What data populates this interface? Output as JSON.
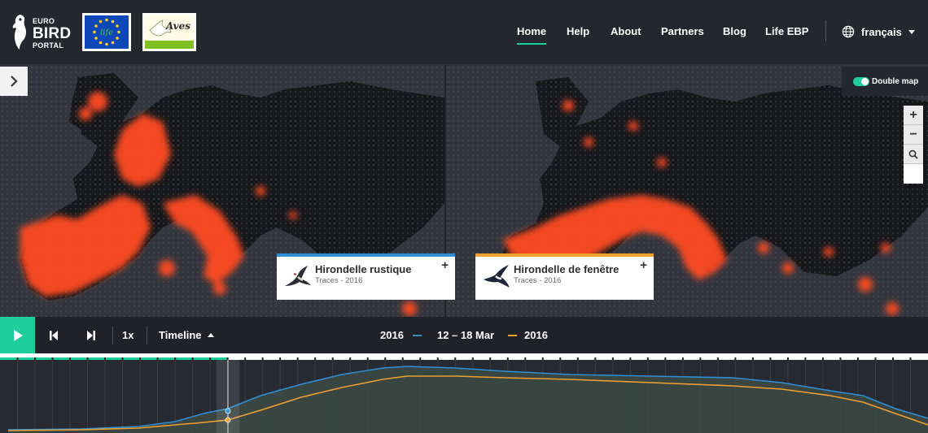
{
  "brand": {
    "line1": "EURO",
    "line2": "BIRD",
    "line3": "PORTAL"
  },
  "partners": {
    "eu_text": "life",
    "aves_text": "Aves"
  },
  "nav": {
    "items": [
      {
        "label": "Home",
        "active": true
      },
      {
        "label": "Help",
        "active": false
      },
      {
        "label": "About",
        "active": false
      },
      {
        "label": "Partners",
        "active": false
      },
      {
        "label": "Blog",
        "active": false
      },
      {
        "label": "Life EBP",
        "active": false
      }
    ],
    "language": "français"
  },
  "map": {
    "double_map_label": "Double map",
    "double_map_on": true,
    "zoom_in": "+",
    "zoom_out": "−",
    "species": [
      {
        "name": "Hirondelle rustique",
        "subtitle": "Traces - 2016",
        "color": "#2e8fd6"
      },
      {
        "name": "Hirondelle de fenêtre",
        "subtitle": "Traces - 2016",
        "color": "#f0a030"
      }
    ],
    "add_label": "+"
  },
  "controls": {
    "speed": "1x",
    "timeline_label": "Timeline",
    "year_left": "2016",
    "date_range": "12 – 18 Mar",
    "year_right": "2016"
  },
  "timeline": {
    "progress_fraction": 0.245,
    "current_week_fraction": 0.245,
    "series_colors": {
      "left": "#2e8fd6",
      "right": "#f0a030",
      "accent": "#1fcf9a"
    }
  }
}
